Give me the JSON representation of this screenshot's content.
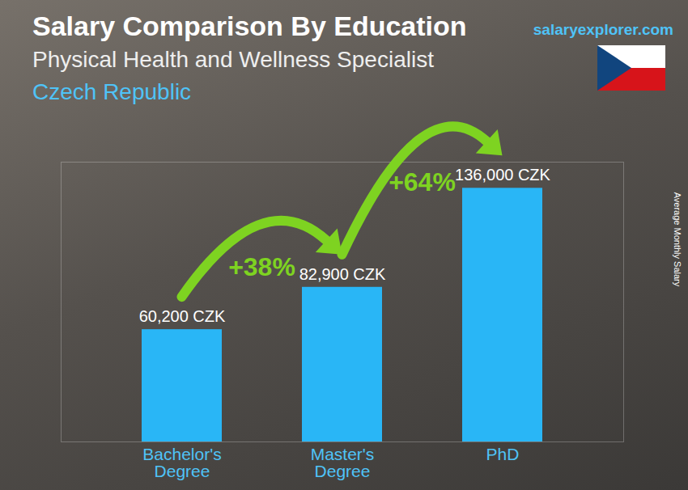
{
  "chart_data": {
    "type": "bar",
    "title": "Salary Comparison By Education",
    "subtitle": "Physical Health and Wellness Specialist",
    "location": "Czech Republic",
    "source": "salaryexplorer.com",
    "y_label": "Average Monthly Salary",
    "categories": [
      "Bachelor's Degree",
      "Master's Degree",
      "PhD"
    ],
    "values": [
      60200,
      82900,
      136000
    ],
    "value_labels": [
      "60,200 CZK",
      "82,900 CZK",
      "136,000 CZK"
    ],
    "color": "#29b6f6",
    "ylim": [
      0,
      150000
    ],
    "yticks": [],
    "tick_labels": "x",
    "data_labels": true,
    "annotations": [
      {
        "text": "+38%",
        "from": "Bachelor's Degree",
        "to": "Master's Degree"
      },
      {
        "text": "+64%",
        "from": "Master's Degree",
        "to": "PhD"
      }
    ]
  }
}
